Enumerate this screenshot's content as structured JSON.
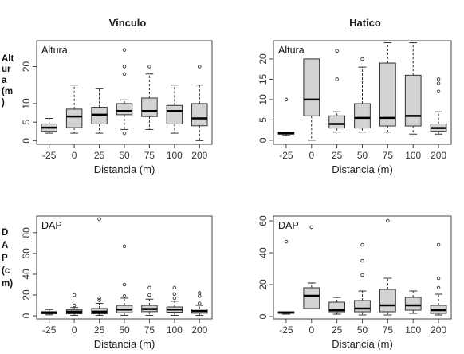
{
  "column_titles": [
    "Vinculo",
    "Hatico"
  ],
  "side_labels": {
    "altura": [
      "Alt",
      "ur",
      "a",
      "(m",
      ")"
    ],
    "dap": [
      "D",
      "A",
      "P",
      "(c",
      "m)"
    ]
  },
  "chart_data": [
    {
      "type": "boxplot",
      "site": "Vinculo",
      "panel_label": "Altura",
      "xlabel": "Distancia (m)",
      "categories": [
        "-25",
        "0",
        "25",
        "50",
        "75",
        "100",
        "200"
      ],
      "ylim": [
        -1,
        27
      ],
      "yticks": [
        0,
        5,
        10,
        20
      ],
      "boxes": [
        {
          "whisker_low": 2,
          "q1": 2.5,
          "median": 3.5,
          "q3": 4.5,
          "whisker_high": 6,
          "outliers": []
        },
        {
          "whisker_low": 2,
          "q1": 3.5,
          "median": 6.5,
          "q3": 8.5,
          "whisker_high": 15,
          "outliers": []
        },
        {
          "whisker_low": 2,
          "q1": 4.5,
          "median": 7,
          "q3": 9,
          "whisker_high": 14,
          "outliers": []
        },
        {
          "whisker_low": 3,
          "q1": 7,
          "median": 8,
          "q3": 10,
          "whisker_high": 11,
          "outliers": [
            2,
            18,
            20,
            24.5
          ]
        },
        {
          "whisker_low": 3,
          "q1": 6.5,
          "median": 8,
          "q3": 11.5,
          "whisker_high": 18,
          "outliers": [
            20
          ]
        },
        {
          "whisker_low": 2,
          "q1": 4.5,
          "median": 8,
          "q3": 9.5,
          "whisker_high": 15,
          "outliers": []
        },
        {
          "whisker_low": 0,
          "q1": 4,
          "median": 6,
          "q3": 10,
          "whisker_high": 15,
          "outliers": [
            20
          ]
        }
      ]
    },
    {
      "type": "boxplot",
      "site": "Hatico",
      "panel_label": "Altura",
      "xlabel": "Distancia (m)",
      "categories": [
        "-25",
        "0",
        "25",
        "50",
        "75",
        "100",
        "200"
      ],
      "ylim": [
        -1,
        24.5
      ],
      "yticks": [
        0,
        5,
        10,
        15,
        20
      ],
      "boxes": [
        {
          "whisker_low": 1.2,
          "q1": 1.5,
          "median": 1.7,
          "q3": 2,
          "whisker_high": 2,
          "outliers": [
            10
          ]
        },
        {
          "whisker_low": 0,
          "q1": 6,
          "median": 10,
          "q3": 20,
          "whisker_high": 20,
          "outliers": []
        },
        {
          "whisker_low": 2,
          "q1": 3,
          "median": 4,
          "q3": 6,
          "whisker_high": 7,
          "outliers": [
            15,
            22
          ]
        },
        {
          "whisker_low": 2,
          "q1": 3,
          "median": 5.5,
          "q3": 9,
          "whisker_high": 18,
          "outliers": [
            20
          ]
        },
        {
          "whisker_low": 2,
          "q1": 3.5,
          "median": 5.5,
          "q3": 19,
          "whisker_high": 24,
          "outliers": []
        },
        {
          "whisker_low": 1.5,
          "q1": 3.5,
          "median": 6,
          "q3": 16,
          "whisker_high": 24,
          "outliers": []
        },
        {
          "whisker_low": 1.5,
          "q1": 2.2,
          "median": 3,
          "q3": 4,
          "whisker_high": 7,
          "outliers": [
            12,
            14,
            15
          ]
        }
      ]
    },
    {
      "type": "boxplot",
      "site": "Vinculo",
      "panel_label": "DAP",
      "xlabel": "Distancia (m)",
      "categories": [
        "-25",
        "0",
        "25",
        "50",
        "75",
        "100",
        "200"
      ],
      "ylim": [
        -3,
        96
      ],
      "yticks": [
        0,
        20,
        40,
        60,
        80
      ],
      "boxes": [
        {
          "whisker_low": 1,
          "q1": 2,
          "median": 3,
          "q3": 4,
          "whisker_high": 6,
          "outliers": []
        },
        {
          "whisker_low": 0.5,
          "q1": 2,
          "median": 4,
          "q3": 6,
          "whisker_high": 8,
          "outliers": [
            10,
            20
          ]
        },
        {
          "whisker_low": 0.5,
          "q1": 2,
          "median": 4,
          "q3": 7,
          "whisker_high": 12,
          "outliers": [
            15,
            17,
            93
          ]
        },
        {
          "whisker_low": 0.5,
          "q1": 3,
          "median": 6,
          "q3": 10,
          "whisker_high": 17,
          "outliers": [
            19,
            30,
            67
          ]
        },
        {
          "whisker_low": 0.5,
          "q1": 4,
          "median": 6.5,
          "q3": 10,
          "whisker_high": 16,
          "outliers": [
            20,
            27
          ]
        },
        {
          "whisker_low": 0.5,
          "q1": 3.5,
          "median": 6,
          "q3": 8.5,
          "whisker_high": 14,
          "outliers": [
            17,
            21,
            27
          ]
        },
        {
          "whisker_low": 0.5,
          "q1": 2.5,
          "median": 4.5,
          "q3": 6.5,
          "whisker_high": 10,
          "outliers": [
            12,
            19,
            22
          ]
        }
      ]
    },
    {
      "type": "boxplot",
      "site": "Hatico",
      "panel_label": "DAP",
      "xlabel": "Distancia (m)",
      "categories": [
        "-25",
        "0",
        "25",
        "50",
        "75",
        "100",
        "200"
      ],
      "ylim": [
        -1.5,
        63
      ],
      "yticks": [
        0,
        20,
        40,
        60
      ],
      "boxes": [
        {
          "whisker_low": 1.5,
          "q1": 2,
          "median": 2.5,
          "q3": 3,
          "whisker_high": 3,
          "outliers": [
            47
          ]
        },
        {
          "whisker_low": 5,
          "q1": 5,
          "median": 13,
          "q3": 18,
          "whisker_high": 21,
          "outliers": [
            56
          ]
        },
        {
          "whisker_low": 1.5,
          "q1": 3,
          "median": 4,
          "q3": 9,
          "whisker_high": 12,
          "outliers": []
        },
        {
          "whisker_low": 1,
          "q1": 3,
          "median": 5,
          "q3": 10,
          "whisker_high": 16,
          "outliers": [
            26,
            35,
            45
          ]
        },
        {
          "whisker_low": 1,
          "q1": 3,
          "median": 7,
          "q3": 17,
          "whisker_high": 24,
          "outliers": [
            60
          ]
        },
        {
          "whisker_low": 2,
          "q1": 4,
          "median": 7,
          "q3": 12,
          "whisker_high": 16,
          "outliers": []
        },
        {
          "whisker_low": 1,
          "q1": 2,
          "median": 4,
          "q3": 7,
          "whisker_high": 14,
          "outliers": [
            18,
            24,
            45
          ]
        }
      ]
    }
  ]
}
